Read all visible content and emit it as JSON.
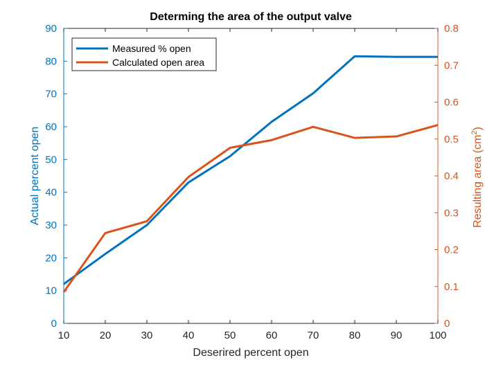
{
  "chart_data": {
    "type": "line",
    "title": "Determing the area of the output valve",
    "xlabel": "Deserired percent open",
    "ylabel_left": "Actual percent open",
    "ylabel_right": "Resulting area (cm",
    "ylabel_right_sup": "2",
    "ylabel_right_close": ")",
    "x": [
      10,
      20,
      30,
      40,
      50,
      60,
      70,
      80,
      90,
      100
    ],
    "xlim": [
      10,
      100
    ],
    "xticks": [
      "10",
      "20",
      "30",
      "40",
      "50",
      "60",
      "70",
      "80",
      "90",
      "100"
    ],
    "ylim_left": [
      0,
      90
    ],
    "yticks_left": [
      "0",
      "10",
      "20",
      "30",
      "40",
      "50",
      "60",
      "70",
      "80",
      "90"
    ],
    "ylim_right": [
      0,
      0.8
    ],
    "yticks_right": [
      "0",
      "0.1",
      "0.2",
      "0.3",
      "0.4",
      "0.5",
      "0.6",
      "0.7",
      "0.8"
    ],
    "grid": false,
    "legend_placement": "top-left",
    "series": [
      {
        "name": "Measured % open",
        "axis": "left",
        "color": "#0072BD",
        "values": [
          12,
          21.2,
          30,
          43,
          51,
          61.5,
          70.2,
          81.5,
          81.3,
          81.3
        ]
      },
      {
        "name": "Calculated open area",
        "axis": "right",
        "color": "#D95319",
        "values": [
          0.085,
          0.245,
          0.277,
          0.397,
          0.476,
          0.497,
          0.533,
          0.503,
          0.507,
          0.538
        ]
      }
    ]
  }
}
